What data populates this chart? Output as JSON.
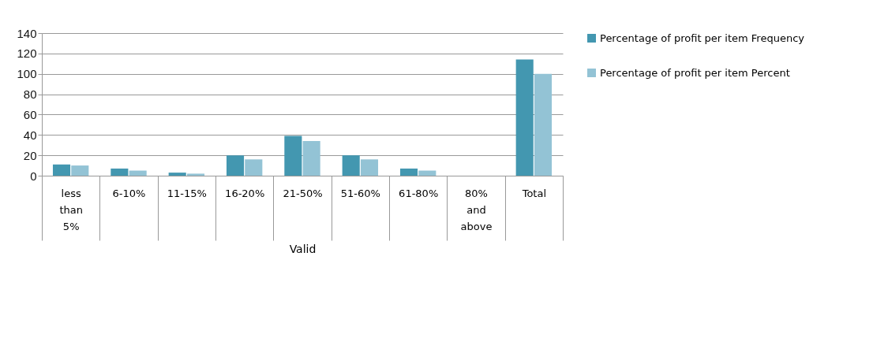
{
  "chart_data": {
    "type": "bar",
    "xlabel": "Valid",
    "categories": [
      "less than 5%",
      "6-10%",
      "11-15%",
      "16-20%",
      "21-50%",
      "51-60%",
      "61-80%",
      "80% and above",
      "Total"
    ],
    "series": [
      {
        "name": "Percentage of profit per item Frequency",
        "color": "#4397b0",
        "values": [
          11,
          7,
          3,
          20,
          39,
          20,
          7,
          0,
          114
        ]
      },
      {
        "name": "Percentage of profit per item Percent",
        "color": "#93c3d5",
        "values": [
          10,
          5,
          2,
          16,
          34,
          16,
          5,
          0,
          100
        ]
      }
    ],
    "ylim": [
      0,
      140
    ],
    "yticks": [
      0,
      20,
      40,
      60,
      80,
      100,
      120,
      140
    ],
    "grid": "y",
    "legend": "right"
  }
}
